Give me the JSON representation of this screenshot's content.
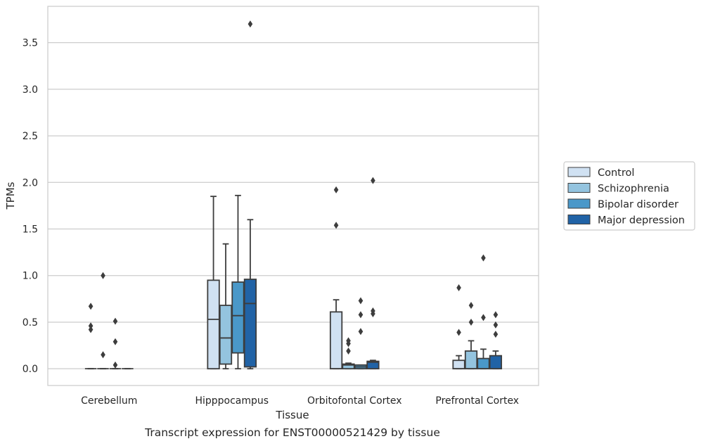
{
  "chart_data": {
    "type": "box",
    "xlabel": "Tissue",
    "ylabel": "TPMs",
    "caption": "Transcript expression for ENST00000521429 by tissue",
    "ylim": [
      -0.18,
      3.89
    ],
    "yticks": [
      "0.0",
      "0.5",
      "1.0",
      "1.5",
      "2.0",
      "2.5",
      "3.0",
      "3.5"
    ],
    "grid": true,
    "legend_position": "center-right outside",
    "categories": [
      "Cerebellum",
      "Hipppocampus",
      "Orbitofontal Cortex",
      "Prefrontal Cortex"
    ],
    "series": [
      {
        "name": "Control",
        "color": "#d0e1f2",
        "boxes": [
          {
            "min": 0,
            "q1": 0,
            "median": 0,
            "q3": 0,
            "max": 0,
            "outliers": [
              0.46,
              0.42,
              0.67
            ]
          },
          {
            "min": 0,
            "q1": 0,
            "median": 0.53,
            "q3": 0.95,
            "max": 1.85,
            "outliers": []
          },
          {
            "min": 0,
            "q1": 0,
            "median": 0,
            "q3": 0.61,
            "max": 0.74,
            "outliers": [
              1.54,
              1.92
            ]
          },
          {
            "min": 0,
            "q1": 0,
            "median": 0,
            "q3": 0.09,
            "max": 0.14,
            "outliers": [
              0.39,
              0.87
            ]
          }
        ]
      },
      {
        "name": "Schizophrenia",
        "color": "#94c4df",
        "boxes": [
          {
            "min": 0,
            "q1": 0,
            "median": 0,
            "q3": 0,
            "max": 0,
            "outliers": [
              0.15,
              1.0
            ]
          },
          {
            "min": 0,
            "q1": 0.05,
            "median": 0.33,
            "q3": 0.68,
            "max": 1.34,
            "outliers": []
          },
          {
            "min": 0,
            "q1": 0,
            "median": 0.04,
            "q3": 0.05,
            "max": 0.06,
            "outliers": [
              0.19,
              0.27,
              0.3
            ]
          },
          {
            "min": 0,
            "q1": 0,
            "median": 0,
            "q3": 0.19,
            "max": 0.3,
            "outliers": [
              0.5,
              0.68
            ]
          }
        ]
      },
      {
        "name": "Bipolar disorder",
        "color": "#4a98c9",
        "boxes": [
          {
            "min": 0,
            "q1": 0,
            "median": 0,
            "q3": 0,
            "max": 0,
            "outliers": [
              0.04,
              0.29,
              0.51
            ]
          },
          {
            "min": 0,
            "q1": 0.17,
            "median": 0.57,
            "q3": 0.93,
            "max": 1.86,
            "outliers": []
          },
          {
            "min": 0,
            "q1": 0,
            "median": 0.02,
            "q3": 0.04,
            "max": 0.04,
            "outliers": [
              0.4,
              0.58,
              0.73
            ]
          },
          {
            "min": 0,
            "q1": 0,
            "median": 0,
            "q3": 0.11,
            "max": 0.21,
            "outliers": [
              0.55,
              1.19
            ]
          }
        ]
      },
      {
        "name": "Major depression",
        "color": "#2163a6",
        "boxes": [
          {
            "min": 0,
            "q1": 0,
            "median": 0,
            "q3": 0,
            "max": 0,
            "outliers": []
          },
          {
            "min": 0,
            "q1": 0.02,
            "median": 0.7,
            "q3": 0.96,
            "max": 1.6,
            "outliers": [
              3.7
            ]
          },
          {
            "min": 0,
            "q1": 0,
            "median": 0.07,
            "q3": 0.08,
            "max": 0.09,
            "outliers": [
              0.59,
              0.62,
              2.02
            ]
          },
          {
            "min": 0,
            "q1": 0,
            "median": 0,
            "q3": 0.14,
            "max": 0.19,
            "outliers": [
              0.37,
              0.47,
              0.58
            ]
          }
        ]
      }
    ]
  }
}
